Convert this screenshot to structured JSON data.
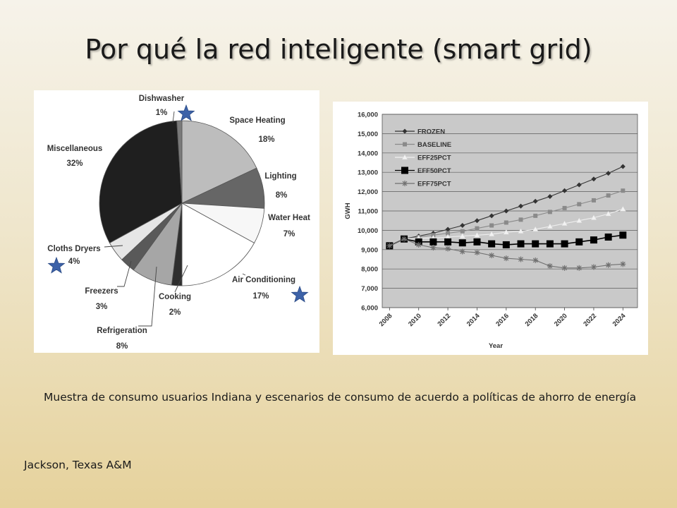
{
  "slide": {
    "title": "Por qué la red inteligente (smart grid)",
    "caption": "Muestra de consumo usuarios Indiana y escenarios de consumo de acuerdo a políticas de ahorro de energía",
    "credit": "Jackson, Texas A&M"
  },
  "star_color": "#3d62a8",
  "chart_data": [
    {
      "type": "pie",
      "title": "",
      "slices": [
        {
          "name": "Space Heating",
          "pct": "18%",
          "value": 18,
          "color": "#bdbdbd"
        },
        {
          "name": "Lighting",
          "pct": "8%",
          "value": 8,
          "color": "#666666"
        },
        {
          "name": "Water Heat",
          "pct": "7%",
          "value": 7,
          "color": "#f7f7f7"
        },
        {
          "name": "Air Conditioning",
          "pct": "17%",
          "value": 17,
          "color": "#ffffff"
        },
        {
          "name": "Cooking",
          "pct": "2%",
          "value": 2,
          "color": "#2e2e2e"
        },
        {
          "name": "Refrigeration",
          "pct": "8%",
          "value": 8,
          "color": "#a6a6a6"
        },
        {
          "name": "Freezers",
          "pct": "3%",
          "value": 3,
          "color": "#595959"
        },
        {
          "name": "Cloths Dryers",
          "pct": "4%",
          "value": 4,
          "color": "#e6e6e6"
        },
        {
          "name": "Miscellaneous",
          "pct": "32%",
          "value": 32,
          "color": "#1f1f1f"
        },
        {
          "name": "Dishwasher",
          "pct": "1%",
          "value": 1,
          "color": "#7a7a7a"
        }
      ],
      "starred": [
        "Dishwasher",
        "Cloths Dryers",
        "Air Conditioning"
      ]
    },
    {
      "type": "line",
      "xlabel": "Year",
      "ylabel": "GWH",
      "ylim": [
        6000,
        16000
      ],
      "yticks": [
        "6,000",
        "7,000",
        "8,000",
        "9,000",
        "10,000",
        "11,000",
        "12,000",
        "13,000",
        "14,000",
        "15,000",
        "16,000"
      ],
      "xticks": [
        "2008",
        "2010",
        "2012",
        "2014",
        "2016",
        "2018",
        "2020",
        "2022",
        "2024"
      ],
      "x": [
        2008,
        2009,
        2010,
        2011,
        2012,
        2013,
        2014,
        2015,
        2016,
        2017,
        2018,
        2019,
        2020,
        2021,
        2022,
        2023,
        2024
      ],
      "grid": true,
      "legend_position": "top-left",
      "series": [
        {
          "name": "FROZEN",
          "marker": "diamond",
          "color": "#333333",
          "values": [
            9200,
            9550,
            9700,
            9850,
            10050,
            10250,
            10500,
            10750,
            11000,
            11250,
            11500,
            11750,
            12050,
            12350,
            12650,
            12950,
            13300
          ]
        },
        {
          "name": "BASELINE",
          "marker": "square",
          "color": "#8a8a8a",
          "values": [
            9200,
            9550,
            9650,
            9750,
            9850,
            9950,
            10100,
            10250,
            10400,
            10550,
            10750,
            10950,
            11150,
            11350,
            11550,
            11800,
            12050
          ]
        },
        {
          "name": "EFF25PCT",
          "marker": "triangle",
          "color": "#f2f2f2",
          "values": [
            9200,
            9550,
            9600,
            9600,
            9650,
            9700,
            9750,
            9800,
            9900,
            9950,
            10050,
            10200,
            10350,
            10500,
            10650,
            10850,
            11100
          ]
        },
        {
          "name": "EFF50PCT",
          "marker": "big-square",
          "color": "#000000",
          "values": [
            9200,
            9550,
            9400,
            9400,
            9400,
            9350,
            9400,
            9300,
            9250,
            9300,
            9300,
            9300,
            9300,
            9400,
            9500,
            9650,
            9750
          ]
        },
        {
          "name": "EFF75PCT",
          "marker": "star",
          "color": "#707070",
          "values": [
            9200,
            9550,
            9250,
            9100,
            9050,
            8900,
            8850,
            8700,
            8550,
            8500,
            8450,
            8150,
            8050,
            8050,
            8100,
            8200,
            8250
          ]
        }
      ]
    }
  ]
}
